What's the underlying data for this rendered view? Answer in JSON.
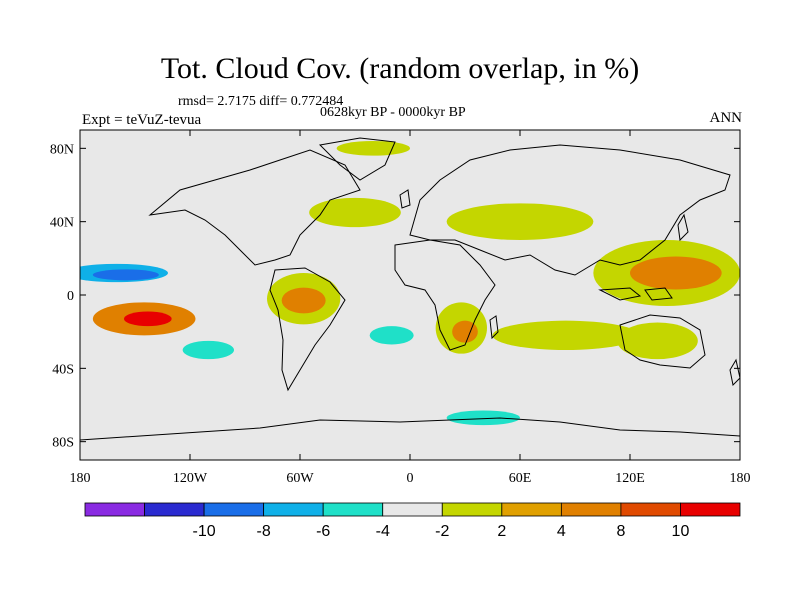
{
  "title": "Tot. Cloud Cov. (random overlap, in %)",
  "stats_text": "rmsd= 2.7175 diff= 0.772484",
  "period_text": "0628kyr BP - 0000kyr BP",
  "experiment_text": "Expt = teVuZ-tevua",
  "season_text": "ANN",
  "map": {
    "x_tick_labels": [
      "180",
      "120W",
      "60W",
      "0",
      "60E",
      "120E",
      "180"
    ],
    "x_tick_lons": [
      -180,
      -120,
      -60,
      0,
      60,
      120,
      180
    ],
    "y_tick_labels": [
      "80N",
      "40N",
      "0",
      "40S",
      "80S"
    ],
    "y_tick_lats": [
      80,
      40,
      0,
      -40,
      -80
    ],
    "lon_range": [
      -180,
      180
    ],
    "lat_range": [
      -90,
      90
    ],
    "background_color": "#e8e8e8",
    "regions": [
      {
        "name": "east-pacific-positive",
        "lon": -145,
        "lat": -13,
        "rx": 28,
        "ry": 9,
        "level": 8
      },
      {
        "name": "east-pacific-max",
        "lon": -143,
        "lat": -13,
        "rx": 13,
        "ry": 4,
        "level": 10
      },
      {
        "name": "north-pacific-negative",
        "lon": -160,
        "lat": 12,
        "rx": 28,
        "ry": 5,
        "level": -6
      },
      {
        "name": "north-pacific-core",
        "lon": -155,
        "lat": 11,
        "rx": 18,
        "ry": 3,
        "level": -8
      },
      {
        "name": "south-america-positive",
        "lon": -58,
        "lat": -2,
        "rx": 20,
        "ry": 14,
        "level": 4
      },
      {
        "name": "amazon-core",
        "lon": -58,
        "lat": -3,
        "rx": 12,
        "ry": 7,
        "level": 8
      },
      {
        "name": "africa-south-positive",
        "lon": 28,
        "lat": -18,
        "rx": 14,
        "ry": 14,
        "level": 4
      },
      {
        "name": "africa-core",
        "lon": 30,
        "lat": -20,
        "rx": 7,
        "ry": 6,
        "level": 8
      },
      {
        "name": "west-pacific-positive",
        "lon": 140,
        "lat": 12,
        "rx": 40,
        "ry": 18,
        "level": 4
      },
      {
        "name": "west-pacific-core",
        "lon": 145,
        "lat": 12,
        "rx": 25,
        "ry": 9,
        "level": 8
      },
      {
        "name": "indian-ocean-south",
        "lon": 85,
        "lat": -22,
        "rx": 40,
        "ry": 8,
        "level": 4
      },
      {
        "name": "australia-positive",
        "lon": 135,
        "lat": -25,
        "rx": 22,
        "ry": 10,
        "level": 4
      },
      {
        "name": "north-atlantic-positive",
        "lon": -30,
        "lat": 45,
        "rx": 25,
        "ry": 8,
        "level": 4
      },
      {
        "name": "eurasia-positive",
        "lon": 60,
        "lat": 40,
        "rx": 40,
        "ry": 10,
        "level": 4
      },
      {
        "name": "south-atlantic-negative",
        "lon": -10,
        "lat": -22,
        "rx": 12,
        "ry": 5,
        "level": -4
      },
      {
        "name": "south-pacific-negative",
        "lon": -110,
        "lat": -30,
        "rx": 14,
        "ry": 5,
        "level": -4
      },
      {
        "name": "southern-ocean-negative",
        "lon": 40,
        "lat": -67,
        "rx": 20,
        "ry": 4,
        "level": -4
      },
      {
        "name": "arctic-positive",
        "lon": -20,
        "lat": 80,
        "rx": 20,
        "ry": 4,
        "level": 4
      }
    ]
  },
  "colorbar": {
    "colors": [
      "#8a2be2",
      "#2a2ad0",
      "#1a6ee8",
      "#0fb0e8",
      "#1fe0c8",
      "#e8e8e8",
      "#c4d600",
      "#e0a000",
      "#e08000",
      "#e04a00",
      "#e80000"
    ],
    "labels": [
      "-10",
      "-8",
      "-6",
      "-4",
      "-2",
      "2",
      "4",
      "8",
      "10"
    ]
  }
}
